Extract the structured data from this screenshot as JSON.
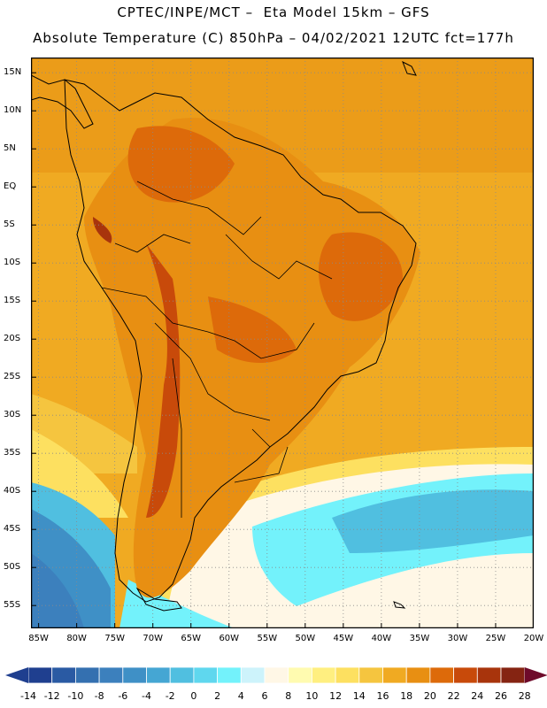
{
  "header": {
    "line1": "CPTEC/INPE/MCT –  Eta Model 15km – GFS",
    "line2": "Absolute Temperature (C) 850hPa – 04/02/2021 12UTC fct=177h"
  },
  "map": {
    "lat_labels": [
      "15N",
      "10N",
      "5N",
      "EQ",
      "5S",
      "10S",
      "15S",
      "20S",
      "25S",
      "30S",
      "35S",
      "40S",
      "45S",
      "50S",
      "55S"
    ],
    "lat_values": [
      15,
      10,
      5,
      0,
      -5,
      -10,
      -15,
      -20,
      -25,
      -30,
      -35,
      -40,
      -45,
      -50,
      -55
    ],
    "lon_labels": [
      "85W",
      "80W",
      "75W",
      "70W",
      "65W",
      "60W",
      "55W",
      "50W",
      "45W",
      "40W",
      "35W",
      "30W",
      "25W",
      "20W"
    ],
    "lon_values": [
      -85,
      -80,
      -75,
      -70,
      -65,
      -60,
      -55,
      -50,
      -45,
      -40,
      -35,
      -30,
      -25,
      -20
    ],
    "lat_range": [
      -58,
      17
    ],
    "lon_range": [
      -86,
      -20
    ]
  },
  "colorbar": {
    "labels": [
      "-14",
      "-12",
      "-10",
      "-8",
      "-6",
      "-4",
      "-2",
      "0",
      "2",
      "4",
      "6",
      "8",
      "10",
      "12",
      "14",
      "16",
      "18",
      "20",
      "22",
      "24",
      "26",
      "28"
    ],
    "colors": [
      "#1f3f8f",
      "#2a5aa3",
      "#3470b0",
      "#3c80bd",
      "#3f90c6",
      "#45a6d3",
      "#50bfe0",
      "#5fd7ee",
      "#73f2fb",
      "#cdf3fb",
      "#fff7e6",
      "#fffbb0",
      "#ffef80",
      "#fde060",
      "#f5c53f",
      "#f0aa22",
      "#e88f12",
      "#dd6a0a",
      "#c84a0a",
      "#a8340c",
      "#852412"
    ]
  }
}
